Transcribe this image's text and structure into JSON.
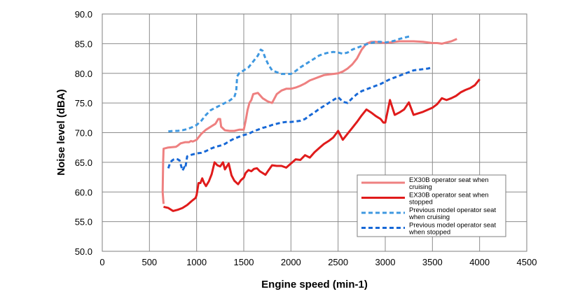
{
  "chart_data": {
    "type": "line",
    "title": "",
    "xlabel": "Engine speed (min-1)",
    "ylabel": "Noise level (dBA)",
    "xlim": [
      0,
      4500
    ],
    "ylim": [
      50,
      90
    ],
    "xticks": [
      0,
      500,
      1000,
      1500,
      2000,
      2500,
      3000,
      3500,
      4000,
      4500
    ],
    "xtick_labels": [
      "0",
      "500",
      "1000",
      "1500",
      "2000",
      "2500",
      "3000",
      "3500",
      "4000",
      "4500"
    ],
    "yticks": [
      50,
      55,
      60,
      65,
      70,
      75,
      80,
      85,
      90
    ],
    "ytick_labels": [
      "50.0",
      "55.0",
      "60.0",
      "65.0",
      "70.0",
      "75.0",
      "80.0",
      "85.0",
      "90.0"
    ],
    "grid": true,
    "legend_position": "bottom-right",
    "series": [
      {
        "name": "EX30B operator seat when cruising",
        "legend_lines": [
          "EX30B operator seat when",
          "cruising"
        ],
        "color": "#ee8080",
        "style": "solid",
        "x": [
          650,
          640,
          645,
          650,
          700,
          780,
          800,
          830,
          880,
          920,
          940,
          960,
          1000,
          1050,
          1100,
          1150,
          1200,
          1230,
          1250,
          1260,
          1300,
          1350,
          1400,
          1450,
          1500,
          1520,
          1540,
          1560,
          1580,
          1600,
          1650,
          1700,
          1750,
          1800,
          1850,
          1900,
          1950,
          2000,
          2050,
          2100,
          2150,
          2200,
          2250,
          2300,
          2350,
          2400,
          2450,
          2500,
          2550,
          2600,
          2650,
          2700,
          2750,
          2800,
          2850,
          2900,
          2950,
          3000,
          3050,
          3100,
          3150,
          3200,
          3300,
          3400,
          3500,
          3550,
          3600,
          3650,
          3700,
          3760
        ],
        "y": [
          58.0,
          60.0,
          65.0,
          67.3,
          67.5,
          67.6,
          67.8,
          68.2,
          68.4,
          68.4,
          68.6,
          68.5,
          68.8,
          69.8,
          70.5,
          71.0,
          71.5,
          72.3,
          72.3,
          71.0,
          70.4,
          70.3,
          70.3,
          70.5,
          70.5,
          72.0,
          73.8,
          75.0,
          75.5,
          76.5,
          76.7,
          75.8,
          75.3,
          75.0,
          76.5,
          77.1,
          77.4,
          77.4,
          77.6,
          77.9,
          78.3,
          78.8,
          79.1,
          79.4,
          79.7,
          79.8,
          79.9,
          80.0,
          80.3,
          80.8,
          81.5,
          82.5,
          84.0,
          85.0,
          85.3,
          85.3,
          85.2,
          85.1,
          85.2,
          85.3,
          85.4,
          85.4,
          85.4,
          85.3,
          85.1,
          85.1,
          85.0,
          85.2,
          85.4,
          85.8
        ]
      },
      {
        "name": "EX30B operator seat when stopped",
        "legend_lines": [
          "EX30B operator seat when",
          "stopped"
        ],
        "color": "#e01b1b",
        "style": "solid",
        "x": [
          650,
          700,
          750,
          800,
          850,
          900,
          950,
          990,
          1000,
          1020,
          1040,
          1060,
          1080,
          1100,
          1130,
          1160,
          1190,
          1220,
          1250,
          1280,
          1300,
          1340,
          1370,
          1400,
          1440,
          1470,
          1500,
          1520,
          1550,
          1580,
          1610,
          1640,
          1670,
          1700,
          1730,
          1760,
          1800,
          1850,
          1900,
          1950,
          2000,
          2050,
          2100,
          2150,
          2200,
          2250,
          2300,
          2350,
          2400,
          2450,
          2500,
          2550,
          2600,
          2650,
          2700,
          2750,
          2800,
          2850,
          2900,
          2950,
          2980,
          3000,
          3050,
          3100,
          3150,
          3200,
          3250,
          3300,
          3400,
          3500,
          3550,
          3600,
          3650,
          3700,
          3750,
          3800,
          3850,
          3900,
          3950,
          4000
        ],
        "y": [
          57.5,
          57.3,
          56.8,
          57.0,
          57.3,
          57.8,
          58.5,
          59.0,
          59.5,
          61.5,
          61.5,
          62.3,
          61.5,
          61.0,
          61.8,
          63.0,
          65.0,
          64.5,
          64.3,
          65.0,
          63.8,
          64.8,
          62.8,
          61.9,
          61.3,
          62.0,
          62.4,
          63.2,
          63.7,
          63.5,
          63.9,
          64.0,
          63.5,
          63.2,
          62.9,
          63.6,
          64.5,
          64.4,
          64.4,
          64.1,
          64.8,
          65.5,
          65.4,
          66.2,
          65.8,
          66.7,
          67.4,
          68.1,
          68.6,
          69.2,
          70.3,
          68.8,
          69.8,
          70.8,
          71.8,
          72.9,
          73.9,
          73.4,
          72.8,
          72.3,
          71.7,
          71.7,
          75.5,
          73.0,
          73.4,
          73.9,
          75.1,
          73.0,
          73.5,
          74.2,
          74.8,
          75.8,
          75.5,
          75.8,
          76.2,
          76.8,
          77.2,
          77.5,
          78.0,
          79.0
        ]
      },
      {
        "name": "Previous model operator seat when cruising",
        "legend_lines": [
          "Previous model operator seat",
          "when cruising"
        ],
        "color": "#3f98e0",
        "style": "dashed",
        "x": [
          700,
          750,
          800,
          850,
          900,
          950,
          1000,
          1050,
          1100,
          1150,
          1200,
          1250,
          1300,
          1350,
          1400,
          1420,
          1430,
          1450,
          1500,
          1550,
          1600,
          1650,
          1680,
          1700,
          1730,
          1760,
          1800,
          1850,
          1900,
          1950,
          2000,
          2050,
          2100,
          2150,
          2200,
          2250,
          2300,
          2350,
          2400,
          2450,
          2500,
          2550,
          2600,
          2650,
          2700,
          2750,
          2800,
          2850,
          2900,
          2950,
          3000,
          3050,
          3100,
          3150,
          3200,
          3250,
          3280
        ],
        "y": [
          70.2,
          70.3,
          70.3,
          70.4,
          70.6,
          70.9,
          71.3,
          72.0,
          73.0,
          73.8,
          74.2,
          74.6,
          75.0,
          75.4,
          76.0,
          77.0,
          79.5,
          80.0,
          80.5,
          81.0,
          82.0,
          83.0,
          84.0,
          83.8,
          82.5,
          81.5,
          80.5,
          80.2,
          79.9,
          79.9,
          79.9,
          80.4,
          81.0,
          81.5,
          82.0,
          82.5,
          83.0,
          83.3,
          83.5,
          83.6,
          83.5,
          83.3,
          83.5,
          84.0,
          84.3,
          84.6,
          84.9,
          85.1,
          85.3,
          85.3,
          85.2,
          85.3,
          85.5,
          85.8,
          86.0,
          86.2,
          86.3
        ]
      },
      {
        "name": "Previous model operator seat when stopped",
        "legend_lines": [
          "Previous model operator seat",
          "when stopped"
        ],
        "color": "#1768d6",
        "style": "dashed",
        "x": [
          700,
          720,
          740,
          760,
          780,
          800,
          820,
          850,
          870,
          880,
          900,
          950,
          1000,
          1050,
          1100,
          1150,
          1200,
          1250,
          1300,
          1350,
          1400,
          1450,
          1500,
          1550,
          1600,
          1650,
          1700,
          1750,
          1800,
          1850,
          1900,
          1950,
          2000,
          2050,
          2100,
          2150,
          2200,
          2250,
          2300,
          2350,
          2400,
          2450,
          2500,
          2550,
          2600,
          2650,
          2700,
          2750,
          2800,
          2850,
          2900,
          2950,
          3000,
          3050,
          3100,
          3150,
          3200,
          3250,
          3300,
          3350,
          3400,
          3450,
          3500
        ],
        "y": [
          64.0,
          65.0,
          65.3,
          65.5,
          65.6,
          65.5,
          65.3,
          63.6,
          64.2,
          64.0,
          66.0,
          66.3,
          66.5,
          66.6,
          66.9,
          67.3,
          67.6,
          67.8,
          68.1,
          68.6,
          69.0,
          69.3,
          69.6,
          69.8,
          70.2,
          70.5,
          70.8,
          71.0,
          71.3,
          71.5,
          71.7,
          71.8,
          71.8,
          71.9,
          72.0,
          72.3,
          72.9,
          73.4,
          74.0,
          74.5,
          75.0,
          75.5,
          76.0,
          75.2,
          75.0,
          75.8,
          76.5,
          77.0,
          77.3,
          77.6,
          77.9,
          78.2,
          78.6,
          79.0,
          79.3,
          79.6,
          79.9,
          80.2,
          80.5,
          80.6,
          80.7,
          80.8,
          81.0
        ]
      }
    ]
  }
}
